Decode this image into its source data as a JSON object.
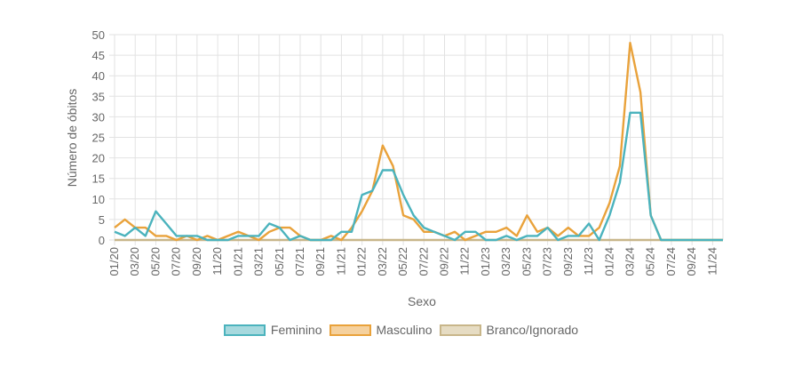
{
  "chart_data": {
    "type": "line",
    "title": "",
    "xlabel": "Sexo",
    "ylabel": "Número de óbitos",
    "ylim": [
      0,
      50
    ],
    "y_ticks": [
      0,
      5,
      10,
      15,
      20,
      25,
      30,
      35,
      40,
      45,
      50
    ],
    "x_tick_labels": [
      "01/20",
      "03/20",
      "05/20",
      "07/20",
      "09/20",
      "11/20",
      "01/21",
      "03/21",
      "05/21",
      "07/21",
      "09/21",
      "11/21",
      "01/22",
      "03/22",
      "05/22",
      "07/22",
      "09/22",
      "11/22",
      "01/23",
      "03/23",
      "05/23",
      "07/23",
      "09/23",
      "11/23",
      "01/24",
      "03/24",
      "05/24",
      "07/24",
      "09/24",
      "11/24"
    ],
    "x": [
      "01/20",
      "02/20",
      "03/20",
      "04/20",
      "05/20",
      "06/20",
      "07/20",
      "08/20",
      "09/20",
      "10/20",
      "11/20",
      "12/20",
      "01/21",
      "02/21",
      "03/21",
      "04/21",
      "05/21",
      "06/21",
      "07/21",
      "08/21",
      "09/21",
      "10/21",
      "11/21",
      "12/21",
      "01/22",
      "02/22",
      "03/22",
      "04/22",
      "05/22",
      "06/22",
      "07/22",
      "08/22",
      "09/22",
      "10/22",
      "11/22",
      "12/22",
      "01/23",
      "02/23",
      "03/23",
      "04/23",
      "05/23",
      "06/23",
      "07/23",
      "08/23",
      "09/23",
      "10/23",
      "11/23",
      "12/23",
      "01/24",
      "02/24",
      "03/24",
      "04/24",
      "05/24",
      "06/24",
      "07/24",
      "08/24",
      "09/24",
      "10/24",
      "11/24",
      "12/24"
    ],
    "grid": true,
    "legend_position": "bottom",
    "series": [
      {
        "name": "Feminino",
        "color": "#4bb3bd",
        "fill": "#a7d9de",
        "values": [
          2,
          1,
          3,
          1,
          7,
          4,
          1,
          1,
          1,
          0,
          0,
          0,
          1,
          1,
          1,
          4,
          3,
          0,
          1,
          0,
          0,
          0,
          2,
          2,
          11,
          12,
          17,
          17,
          11,
          6,
          3,
          2,
          1,
          0,
          2,
          2,
          0,
          0,
          1,
          0,
          1,
          1,
          3,
          0,
          1,
          1,
          4,
          0,
          6,
          14,
          31,
          31,
          6,
          0,
          0,
          0,
          0,
          0,
          0,
          0
        ]
      },
      {
        "name": "Masculino",
        "color": "#e9a23b",
        "fill": "#f5d19e",
        "values": [
          3,
          5,
          3,
          3,
          1,
          1,
          0,
          1,
          0,
          1,
          0,
          1,
          2,
          1,
          0,
          2,
          3,
          3,
          1,
          0,
          0,
          1,
          0,
          3,
          7,
          12,
          23,
          18,
          6,
          5,
          2,
          2,
          1,
          2,
          0,
          1,
          2,
          2,
          3,
          1,
          6,
          2,
          3,
          1,
          3,
          1,
          1,
          3,
          9,
          18,
          48,
          36,
          6,
          0,
          0,
          0,
          0,
          0,
          0,
          0
        ]
      },
      {
        "name": "Branco/Ignorado",
        "color": "#c8b68a",
        "fill": "#e6dcc3",
        "values": [
          0,
          0,
          0,
          0,
          0,
          0,
          0,
          0,
          0,
          0,
          0,
          0,
          0,
          0,
          0,
          0,
          0,
          0,
          0,
          0,
          0,
          0,
          0,
          0,
          0,
          0,
          0,
          0,
          0,
          0,
          0,
          0,
          0,
          0,
          0,
          0,
          0,
          0,
          0,
          0,
          0,
          0,
          0,
          0,
          0,
          0,
          0,
          0,
          0,
          0,
          0,
          0,
          0,
          0,
          0,
          0,
          0,
          0,
          0,
          0
        ]
      }
    ]
  }
}
